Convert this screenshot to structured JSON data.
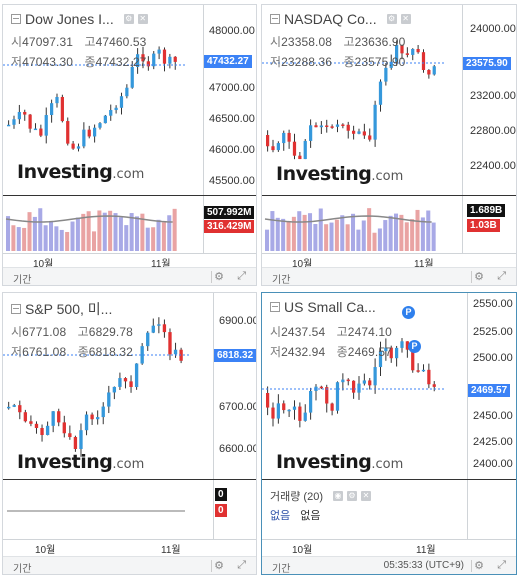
{
  "colors": {
    "up": "#3598db",
    "down": "#e03131",
    "volUp": "#a8a9e6",
    "volDown": "#e9a3a3",
    "priceTag": "#3b82f6"
  },
  "footer": {
    "range_label": "기간",
    "time": "05:35:33 (UTC+9)",
    "gear_icon": "gear-icon",
    "expand_icon": "expand-icon"
  },
  "panels": {
    "dow": {
      "title": "Dow Jones I...",
      "ohlc": {
        "open_label": "시",
        "open": "47097.31",
        "high_label": "고",
        "high": "47460.53",
        "low_label": "저",
        "low": "47043.30",
        "close_label": "종",
        "close": "47432.27"
      },
      "last_price": "47432.27",
      "y_ticks": [
        "48000.00",
        "47500.00",
        "47000.00",
        "46500.00",
        "46000.00",
        "45500.00"
      ],
      "x_ticks": [
        "10월",
        "11월"
      ],
      "vol_up": "507.992M",
      "vol_down": "316.429M",
      "range_label": "기간"
    },
    "nasdaq": {
      "title": "NASDAQ Co...",
      "ohlc": {
        "open_label": "시",
        "open": "23358.08",
        "high_label": "고",
        "high": "23636.90",
        "low_label": "저",
        "low": "23288.36",
        "close_label": "종",
        "close": "23575.90"
      },
      "last_price": "23575.90",
      "y_ticks": [
        "24000.00",
        "23600.00",
        "23200.00",
        "22800.00",
        "22400.00"
      ],
      "x_ticks": [
        "10월",
        "11월"
      ],
      "vol_up": "1.689B",
      "vol_down": "1.03B",
      "range_label": "기간"
    },
    "sp": {
      "title": "S&P 500, 미...",
      "ohlc": {
        "open_label": "시",
        "open": "6771.08",
        "high_label": "고",
        "high": "6829.78",
        "low_label": "저",
        "low": "6761.08",
        "close_label": "종",
        "close": "6818.32"
      },
      "last_price": "6818.32",
      "y_ticks": [
        "6900.00",
        "6800.00",
        "6700.00",
        "6600.00"
      ],
      "x_ticks": [
        "10월",
        "11월"
      ],
      "vol_up": "0",
      "vol_down": "0",
      "range_label": "기간"
    },
    "russell": {
      "title": "US Small Ca...",
      "ohlc": {
        "open_label": "시",
        "open": "2437.54",
        "high_label": "고",
        "high": "2474.10",
        "low_label": "저",
        "low": "2432.94",
        "close_label": "종",
        "close": "2469.57"
      },
      "last_price": "2469.57",
      "y_ticks": [
        "2550.00",
        "2525.00",
        "2500.00",
        "2475.00",
        "2450.00",
        "2425.00",
        "2400.00"
      ],
      "x_ticks": [
        "10월",
        "11월"
      ],
      "badge": "P",
      "volume_label": "거래량 (20)",
      "volume_value1": "없음",
      "volume_value2": "없음",
      "range_label": "기간",
      "time": "05:35:33 (UTC+9)"
    }
  }
}
